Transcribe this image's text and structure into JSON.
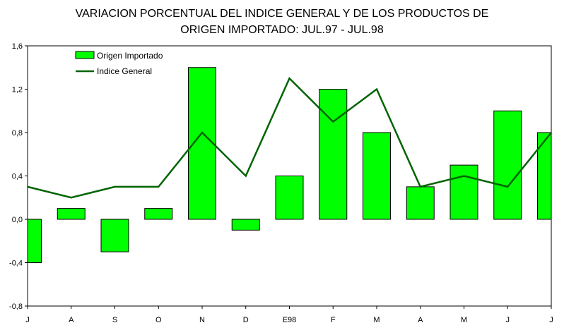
{
  "chart_data": {
    "type": "bar",
    "title_line1": "VARIACION PORCENTUAL DEL INDICE GENERAL Y DE LOS PRODUCTOS DE",
    "title_line2": "ORIGEN IMPORTADO: JUL.97 - JUL.98",
    "categories": [
      "J",
      "A",
      "S",
      "O",
      "N",
      "D",
      "E98",
      "F",
      "M",
      "A",
      "M",
      "J",
      "J"
    ],
    "series": [
      {
        "name": "Origen Importado",
        "type": "bar",
        "color": "#00ff00",
        "values": [
          -0.4,
          0.1,
          -0.3,
          0.1,
          1.4,
          -0.1,
          0.4,
          1.2,
          0.8,
          0.3,
          0.5,
          1.0,
          0.8
        ]
      },
      {
        "name": "Indice General",
        "type": "line",
        "color": "#006400",
        "values": [
          0.3,
          0.2,
          0.3,
          0.3,
          0.8,
          0.4,
          1.3,
          0.9,
          1.2,
          0.3,
          0.4,
          0.3,
          0.8
        ]
      }
    ],
    "ylim": [
      -0.8,
      1.6
    ],
    "yticks": [
      "-0,8",
      "-0,4",
      "0,0",
      "0,4",
      "0,8",
      "1,2",
      "1,6"
    ],
    "ytick_values": [
      -0.8,
      -0.4,
      0.0,
      0.4,
      0.8,
      1.2,
      1.6
    ],
    "legend": {
      "position": "top-left",
      "items": [
        "Origen Importado",
        "Indice General"
      ]
    },
    "grid": false
  }
}
